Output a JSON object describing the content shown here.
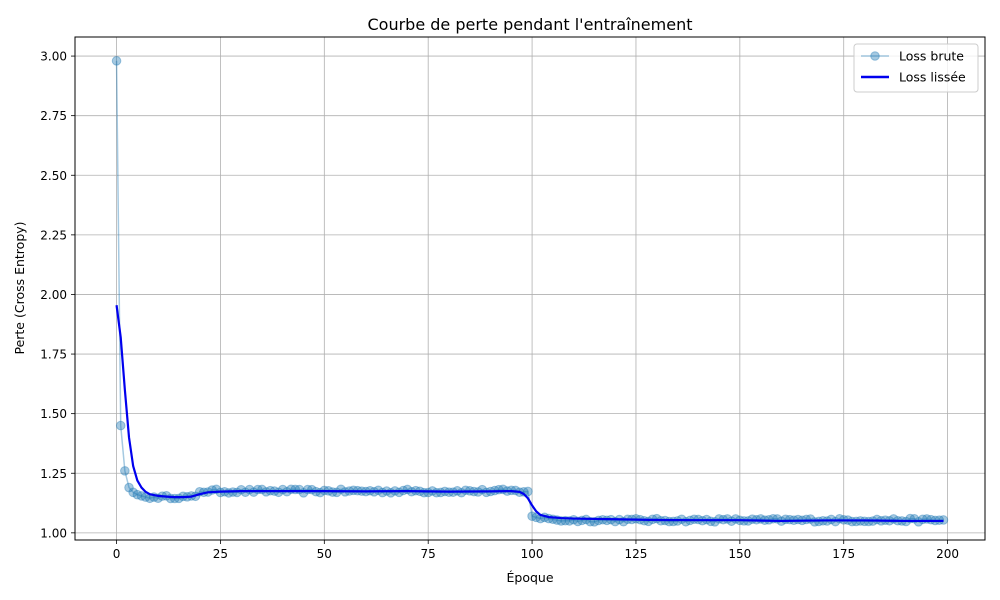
{
  "chart_data": {
    "type": "line",
    "title": "Courbe de perte pendant l'entraînement",
    "xlabel": "Époque",
    "ylabel": "Perte (Cross Entropy)",
    "xlim": [
      -10,
      209
    ],
    "ylim": [
      0.97,
      3.08
    ],
    "xticks": [
      0,
      25,
      50,
      75,
      100,
      125,
      150,
      175,
      200
    ],
    "yticks": [
      1.0,
      1.25,
      1.5,
      1.75,
      2.0,
      2.25,
      2.5,
      2.75,
      3.0
    ],
    "ytick_labels": [
      "1.00",
      "1.25",
      "1.50",
      "1.75",
      "2.00",
      "2.25",
      "2.50",
      "2.75",
      "3.00"
    ],
    "grid": true,
    "legend_position": "top-right",
    "series": [
      {
        "name": "Loss brute",
        "style": "line-with-markers",
        "color": "#1f77b4",
        "segments": [
          {
            "from": 0,
            "to": 9,
            "values": [
              2.98,
              1.45,
              1.26,
              1.19,
              1.17,
              1.16,
              1.155,
              1.15,
              1.145,
              1.15
            ]
          },
          {
            "from": 10,
            "to": 19,
            "base": 1.15,
            "jitter": 0.006
          },
          {
            "from": 20,
            "to": 99,
            "base": 1.175,
            "jitter": 0.008
          },
          {
            "from": 100,
            "to": 104,
            "values": [
              1.07,
              1.065,
              1.06,
              1.065,
              1.06
            ]
          },
          {
            "from": 105,
            "to": 199,
            "base": 1.053,
            "jitter": 0.007
          }
        ]
      },
      {
        "name": "Loss lissée",
        "style": "line",
        "color": "#0000ee",
        "points": [
          [
            0,
            1.955
          ],
          [
            1,
            1.82
          ],
          [
            2,
            1.6
          ],
          [
            3,
            1.4
          ],
          [
            4,
            1.28
          ],
          [
            5,
            1.22
          ],
          [
            6,
            1.19
          ],
          [
            7,
            1.172
          ],
          [
            8,
            1.162
          ],
          [
            10,
            1.155
          ],
          [
            12,
            1.152
          ],
          [
            14,
            1.15
          ],
          [
            16,
            1.15
          ],
          [
            18,
            1.152
          ],
          [
            20,
            1.162
          ],
          [
            22,
            1.17
          ],
          [
            25,
            1.173
          ],
          [
            30,
            1.175
          ],
          [
            40,
            1.175
          ],
          [
            50,
            1.175
          ],
          [
            60,
            1.174
          ],
          [
            70,
            1.175
          ],
          [
            80,
            1.173
          ],
          [
            90,
            1.174
          ],
          [
            95,
            1.175
          ],
          [
            97,
            1.172
          ],
          [
            98,
            1.163
          ],
          [
            99,
            1.145
          ],
          [
            100,
            1.115
          ],
          [
            101,
            1.09
          ],
          [
            102,
            1.075
          ],
          [
            104,
            1.066
          ],
          [
            107,
            1.062
          ],
          [
            110,
            1.06
          ],
          [
            120,
            1.057
          ],
          [
            130,
            1.054
          ],
          [
            140,
            1.053
          ],
          [
            150,
            1.053
          ],
          [
            160,
            1.05
          ],
          [
            170,
            1.052
          ],
          [
            180,
            1.052
          ],
          [
            190,
            1.05
          ],
          [
            199,
            1.05
          ]
        ]
      }
    ]
  }
}
